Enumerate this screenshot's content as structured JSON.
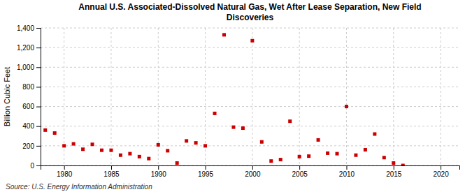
{
  "chart_data": {
    "type": "scatter",
    "title": "Annual U.S. Associated-Dissolved Natural Gas, Wet After Lease Separation, New Field\nDiscoveries",
    "ylabel": "Billion Cubic Feet",
    "source": "Source: U.S. Energy Information Administration",
    "x": [
      1978,
      1979,
      1980,
      1981,
      1982,
      1983,
      1984,
      1985,
      1986,
      1987,
      1988,
      1989,
      1990,
      1991,
      1992,
      1993,
      1994,
      1995,
      1996,
      1997,
      1998,
      1999,
      2000,
      2001,
      2002,
      2003,
      2004,
      2005,
      2006,
      2007,
      2008,
      2009,
      2010,
      2011,
      2012,
      2013,
      2014,
      2015,
      2016
    ],
    "values": [
      360,
      330,
      200,
      220,
      165,
      215,
      155,
      155,
      105,
      120,
      90,
      70,
      210,
      150,
      25,
      250,
      230,
      200,
      530,
      1330,
      390,
      380,
      1270,
      240,
      45,
      60,
      450,
      90,
      95,
      260,
      125,
      120,
      600,
      105,
      160,
      320,
      80,
      25,
      0
    ],
    "color": "#cc0000",
    "marker": "square",
    "xlim": [
      1977.5,
      2022
    ],
    "xticks": [
      1980,
      1985,
      1990,
      1995,
      2000,
      2005,
      2010,
      2015,
      2020
    ],
    "ylim": [
      0,
      1400
    ],
    "yticks": [
      0,
      200,
      400,
      600,
      800,
      {
        "value": 1000,
        "label": "1,000"
      },
      {
        "value": 1200,
        "label": "1,200"
      },
      {
        "value": 1400,
        "label": "1,400"
      }
    ],
    "grid": true
  }
}
